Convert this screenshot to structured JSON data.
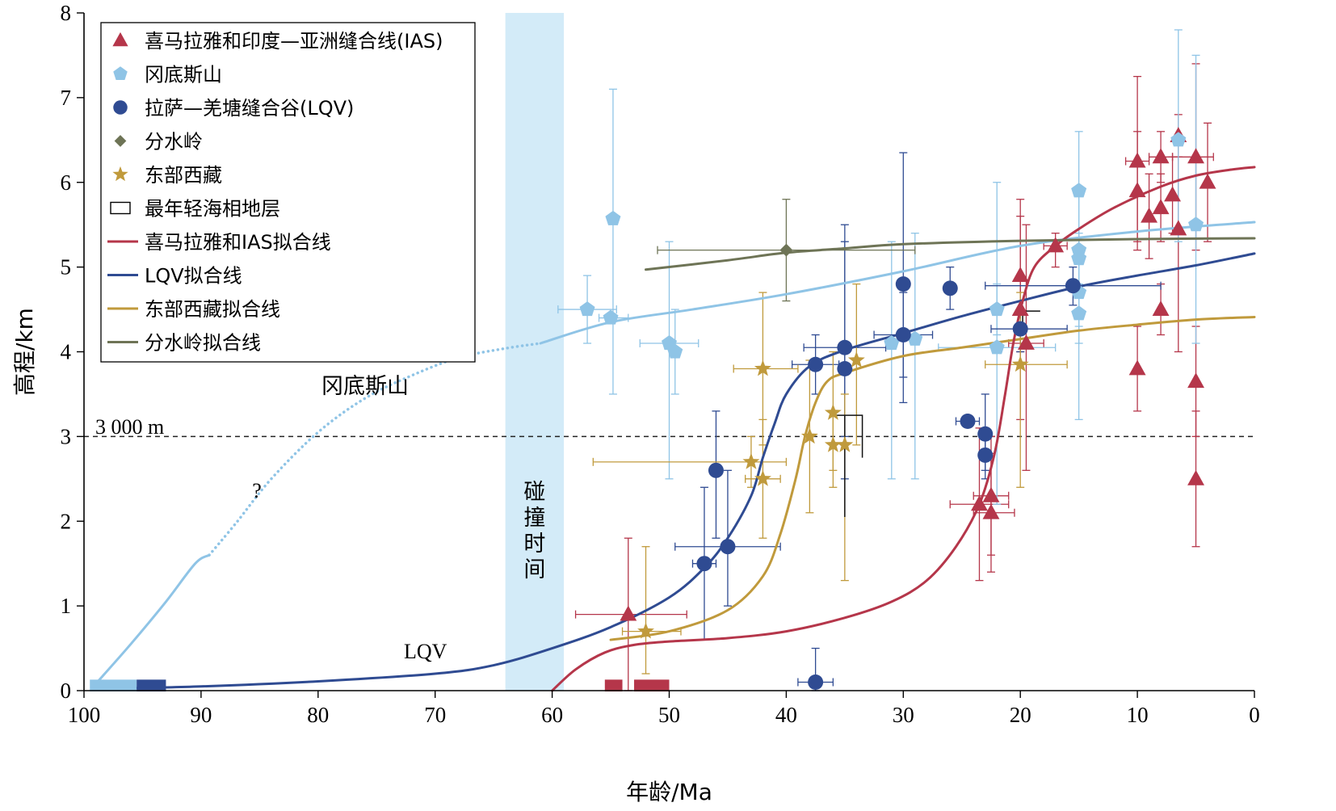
{
  "chart_data": {
    "type": "scatter",
    "xlabel": "年龄/Ma",
    "ylabel": "高程/km",
    "xlim": [
      100,
      0
    ],
    "ylim": [
      0,
      8
    ],
    "x_ticks": [
      100,
      90,
      80,
      70,
      60,
      50,
      40,
      30,
      20,
      10,
      0
    ],
    "y_ticks": [
      0,
      1,
      2,
      3,
      4,
      5,
      6,
      7,
      8
    ],
    "legend_position": "top-left",
    "colors": {
      "ias": "#b5364a",
      "gangdese": "#8fc4e6",
      "lqv": "#2f4b92",
      "divide": "#6e7456",
      "tibet_east": "#c09a3c",
      "collision_band": "#d3ebf8"
    },
    "legend": [
      {
        "key": "ias",
        "label": "喜马拉雅和印度—亚洲缝合线(IAS)",
        "marker": "triangle"
      },
      {
        "key": "gangdese",
        "label": "冈底斯山",
        "marker": "pentagon"
      },
      {
        "key": "lqv",
        "label": "拉萨—羌塘缝合谷(LQV)",
        "marker": "circle"
      },
      {
        "key": "divide",
        "label": "分水岭",
        "marker": "diamond"
      },
      {
        "key": "tibet_east",
        "label": "东部西藏",
        "marker": "star"
      },
      {
        "key": "marine",
        "label": "最年轻海相地层",
        "marker": "rect"
      },
      {
        "key": "ias_fit",
        "label": "喜马拉雅和IAS拟合线",
        "marker": "line",
        "color": "#b5364a"
      },
      {
        "key": "lqv_fit",
        "label": "LQV拟合线",
        "marker": "line",
        "color": "#2f4b92"
      },
      {
        "key": "tibet_east_fit",
        "label": "东部西藏拟合线",
        "marker": "line",
        "color": "#c09a3c"
      },
      {
        "key": "divide_fit",
        "label": "分水岭拟合线",
        "marker": "line",
        "color": "#6e7456"
      }
    ],
    "annotations": {
      "collision": "碰撞时间",
      "gangdese_label": "冈底斯山",
      "lqv_label": "LQV",
      "question": "?",
      "threshold_label": "3 000 m"
    },
    "collision_band": [
      64,
      59
    ],
    "threshold": 3,
    "series": [
      {
        "key": "ias",
        "points": [
          {
            "x": 53.5,
            "y": 0.9,
            "ylo": 0,
            "yhi": 1.8,
            "xlo": 58,
            "xhi": 48.5
          },
          {
            "x": 23.5,
            "y": 2.2,
            "ylo": 1.3,
            "yhi": 3.1,
            "xlo": 26,
            "xhi": 21
          },
          {
            "x": 22.5,
            "y": 2.3,
            "ylo": 1.6,
            "yhi": 3.0,
            "xlo": 24,
            "xhi": 21
          },
          {
            "x": 22.5,
            "y": 2.1,
            "ylo": 1.4,
            "yhi": 2.8,
            "xlo": 24,
            "xhi": 20.5
          },
          {
            "x": 20,
            "y": 4.9,
            "ylo": 4,
            "yhi": 5.8
          },
          {
            "x": 20,
            "y": 4.5,
            "ylo": 3.2,
            "yhi": 5.6
          },
          {
            "x": 19.5,
            "y": 4.1,
            "ylo": 2.6,
            "yhi": 5.5,
            "xlo": 21,
            "xhi": 18
          },
          {
            "x": 17,
            "y": 5.25,
            "ylo": 5.0,
            "yhi": 5.4,
            "xlo": 18,
            "xhi": 16
          },
          {
            "x": 10,
            "y": 6.25,
            "ylo": 5.3,
            "yhi": 7.25,
            "xlo": 11,
            "xhi": 9
          },
          {
            "x": 10,
            "y": 5.9,
            "ylo": 5.2,
            "yhi": 6.6
          },
          {
            "x": 10,
            "y": 3.8,
            "ylo": 3.3,
            "yhi": 4.3
          },
          {
            "x": 9,
            "y": 5.6,
            "ylo": 5.1,
            "yhi": 6.1
          },
          {
            "x": 8,
            "y": 6.3,
            "ylo": 6.0,
            "yhi": 6.6,
            "xlo": 9,
            "xhi": 7
          },
          {
            "x": 8,
            "y": 5.7,
            "ylo": 5.3,
            "yhi": 6.1
          },
          {
            "x": 8,
            "y": 4.5,
            "ylo": 4.2,
            "yhi": 4.8
          },
          {
            "x": 7,
            "y": 5.85,
            "ylo": 5.4,
            "yhi": 6.3
          },
          {
            "x": 6.5,
            "y": 6.55,
            "ylo": 6.3,
            "yhi": 6.8
          },
          {
            "x": 6.5,
            "y": 5.45,
            "ylo": 4.0,
            "yhi": 6.3
          },
          {
            "x": 5,
            "y": 6.3,
            "ylo": 5.2,
            "yhi": 7.4,
            "xlo": 7,
            "xhi": 3.5
          },
          {
            "x": 5,
            "y": 3.65,
            "ylo": 3.0,
            "yhi": 4.3
          },
          {
            "x": 5,
            "y": 2.5,
            "ylo": 1.7,
            "yhi": 3.3
          },
          {
            "x": 4,
            "y": 6.0,
            "ylo": 5.3,
            "yhi": 6.7
          }
        ]
      },
      {
        "key": "gangdese",
        "points": [
          {
            "x": 57,
            "y": 4.5,
            "ylo": 4.1,
            "yhi": 4.9,
            "xlo": 59.5,
            "xhi": 54.5
          },
          {
            "x": 55,
            "y": 4.4,
            "xlo": 56,
            "xhi": 53.5
          },
          {
            "x": 54.8,
            "y": 5.57,
            "ylo": 3.5,
            "yhi": 7.1
          },
          {
            "x": 50,
            "y": 4.1,
            "ylo": 2.5,
            "yhi": 5.3,
            "xlo": 52.5,
            "xhi": 47.5
          },
          {
            "x": 49.5,
            "y": 4.0,
            "ylo": 3.5,
            "yhi": 4.5
          },
          {
            "x": 31,
            "y": 4.1,
            "ylo": 2.5,
            "yhi": 5.3
          },
          {
            "x": 29,
            "y": 4.15,
            "ylo": 2.5,
            "yhi": 5.4
          },
          {
            "x": 22,
            "y": 4.05,
            "ylo": 2.2,
            "yhi": 6.0,
            "xlo": 27,
            "xhi": 17
          },
          {
            "x": 22,
            "y": 4.5,
            "ylo": 4.2,
            "yhi": 4.8
          },
          {
            "x": 15,
            "y": 5.9,
            "ylo": 3.2,
            "yhi": 6.6
          },
          {
            "x": 15,
            "y": 5.2,
            "ylo": 4.5,
            "yhi": 5.9
          },
          {
            "x": 15,
            "y": 5.1,
            "ylo": 4.8,
            "yhi": 5.4
          },
          {
            "x": 15,
            "y": 4.7,
            "ylo": 4.3,
            "yhi": 5.1
          },
          {
            "x": 15,
            "y": 4.45,
            "ylo": 4.1,
            "yhi": 4.8
          },
          {
            "x": 6.5,
            "y": 6.5,
            "ylo": 5.3,
            "yhi": 7.8
          },
          {
            "x": 5,
            "y": 5.5,
            "ylo": 4.1,
            "yhi": 7.5
          }
        ]
      },
      {
        "key": "lqv",
        "points": [
          {
            "x": 47,
            "y": 1.5,
            "ylo": 0.6,
            "yhi": 2.4,
            "xlo": 48,
            "xhi": 46
          },
          {
            "x": 46,
            "y": 2.6,
            "ylo": 1.8,
            "yhi": 3.3
          },
          {
            "x": 45,
            "y": 1.7,
            "ylo": 1.0,
            "yhi": 2.6,
            "xlo": 49.5,
            "xhi": 40.5
          },
          {
            "x": 37.5,
            "y": 3.85,
            "ylo": 3.5,
            "yhi": 4.2,
            "xlo": 39.5,
            "xhi": 35.5
          },
          {
            "x": 37.5,
            "y": 0.1,
            "ylo": 0,
            "yhi": 0.5,
            "xlo": 39,
            "xhi": 36
          },
          {
            "x": 35,
            "y": 4.05,
            "ylo": 2.5,
            "yhi": 5.5,
            "xlo": 38.5,
            "xhi": 31.5
          },
          {
            "x": 35,
            "y": 3.8,
            "ylo": 3.0,
            "yhi": 5.3
          },
          {
            "x": 30,
            "y": 4.8,
            "ylo": 3.4,
            "yhi": 6.35
          },
          {
            "x": 30,
            "y": 4.2,
            "ylo": 3.7,
            "yhi": 4.7,
            "xlo": 32.5,
            "xhi": 27.5
          },
          {
            "x": 26,
            "y": 4.75,
            "ylo": 4.5,
            "yhi": 5.0
          },
          {
            "x": 24.5,
            "y": 3.18,
            "xlo": 25.5,
            "xhi": 23.5
          },
          {
            "x": 23,
            "y": 3.03,
            "ylo": 2.6,
            "yhi": 3.5
          },
          {
            "x": 23,
            "y": 2.78,
            "ylo": 2.5,
            "yhi": 3.1
          },
          {
            "x": 20,
            "y": 4.27,
            "ylo": 4.0,
            "yhi": 4.5,
            "xlo": 22.5,
            "xhi": 16
          },
          {
            "x": 15.5,
            "y": 4.78,
            "ylo": 4.55,
            "yhi": 5.0,
            "xlo": 23,
            "xhi": 8
          }
        ]
      },
      {
        "key": "divide",
        "points": [
          {
            "x": 40,
            "y": 5.2,
            "ylo": 4.6,
            "yhi": 5.8,
            "xlo": 51,
            "xhi": 29
          }
        ]
      },
      {
        "key": "tibet_east",
        "points": [
          {
            "x": 52,
            "y": 0.7,
            "ylo": 0.2,
            "yhi": 1.7,
            "xlo": 54,
            "xhi": 49
          },
          {
            "x": 43,
            "y": 2.7,
            "ylo": 2.4,
            "yhi": 3.0,
            "xlo": 56.5,
            "xhi": 40
          },
          {
            "x": 42,
            "y": 2.5,
            "ylo": 1.8,
            "yhi": 3.2,
            "xlo": 43.5,
            "xhi": 40.5
          },
          {
            "x": 42,
            "y": 3.8,
            "ylo": 2.9,
            "yhi": 4.7,
            "xlo": 44.5,
            "xhi": 39
          },
          {
            "x": 38,
            "y": 3.0,
            "ylo": 2.1,
            "yhi": 3.9
          },
          {
            "x": 36,
            "y": 3.28,
            "ylo": 2.6,
            "yhi": 4.0
          },
          {
            "x": 36,
            "y": 2.9,
            "ylo": 2.4,
            "yhi": 3.3
          },
          {
            "x": 35,
            "y": 2.9,
            "ylo": 1.3,
            "yhi": 3.5
          },
          {
            "x": 34,
            "y": 3.9,
            "ylo": 2.9,
            "yhi": 4.8
          },
          {
            "x": 20,
            "y": 3.85,
            "ylo": 2.4,
            "yhi": 4.7,
            "xlo": 23,
            "xhi": 16
          }
        ]
      }
    ],
    "fits": [
      {
        "key": "gangdese_fit",
        "style": "solid",
        "points": [
          [
            99,
            0.08
          ],
          [
            96,
            0.55
          ],
          [
            93,
            1.05
          ],
          [
            90.5,
            1.5
          ],
          [
            89.3,
            1.6
          ]
        ]
      },
      {
        "key": "gangdese_fit",
        "style": "dotted",
        "points": [
          [
            89.3,
            1.6
          ],
          [
            87,
            1.98
          ],
          [
            84,
            2.5
          ],
          [
            80,
            3.05
          ],
          [
            76,
            3.45
          ],
          [
            72,
            3.72
          ],
          [
            68,
            3.93
          ],
          [
            64,
            4.04
          ],
          [
            61,
            4.1
          ]
        ]
      },
      {
        "key": "gangdese_fit",
        "style": "solid",
        "points": [
          [
            61,
            4.1
          ],
          [
            55,
            4.35
          ],
          [
            48,
            4.5
          ],
          [
            40,
            4.68
          ],
          [
            30,
            4.95
          ],
          [
            20,
            5.25
          ],
          [
            10,
            5.42
          ],
          [
            0,
            5.53
          ]
        ]
      },
      {
        "key": "lqv_fit",
        "style": "solid",
        "points": [
          [
            99,
            0.02
          ],
          [
            90,
            0.05
          ],
          [
            80,
            0.11
          ],
          [
            70,
            0.2
          ],
          [
            65,
            0.3
          ],
          [
            60,
            0.5
          ],
          [
            55,
            0.75
          ],
          [
            50,
            1.1
          ],
          [
            47,
            1.45
          ],
          [
            45,
            1.8
          ],
          [
            43,
            2.3
          ],
          [
            42,
            2.75
          ],
          [
            41,
            3.15
          ],
          [
            40,
            3.5
          ],
          [
            38,
            3.83
          ],
          [
            35,
            4.02
          ],
          [
            30,
            4.22
          ],
          [
            25,
            4.42
          ],
          [
            20,
            4.6
          ],
          [
            15,
            4.77
          ],
          [
            10,
            4.9
          ],
          [
            5,
            5.02
          ],
          [
            0,
            5.16
          ]
        ]
      },
      {
        "key": "tibet_east_fit",
        "style": "solid",
        "points": [
          [
            55,
            0.6
          ],
          [
            50,
            0.7
          ],
          [
            45,
            0.95
          ],
          [
            42,
            1.35
          ],
          [
            40.5,
            1.85
          ],
          [
            39.2,
            2.5
          ],
          [
            38.4,
            3.0
          ],
          [
            37.5,
            3.4
          ],
          [
            36.5,
            3.65
          ],
          [
            35,
            3.75
          ],
          [
            30,
            3.95
          ],
          [
            25,
            4.05
          ],
          [
            20,
            4.15
          ],
          [
            15,
            4.25
          ],
          [
            10,
            4.32
          ],
          [
            5,
            4.38
          ],
          [
            0,
            4.41
          ]
        ]
      },
      {
        "key": "ias_fit",
        "style": "solid",
        "points": [
          [
            60,
            0
          ],
          [
            58,
            0.25
          ],
          [
            55.5,
            0.45
          ],
          [
            53,
            0.54
          ],
          [
            50,
            0.58
          ],
          [
            45,
            0.62
          ],
          [
            40,
            0.7
          ],
          [
            35,
            0.86
          ],
          [
            31,
            1.05
          ],
          [
            28,
            1.3
          ],
          [
            25.5,
            1.7
          ],
          [
            23.5,
            2.2
          ],
          [
            22.2,
            2.8
          ],
          [
            21.3,
            3.5
          ],
          [
            20.6,
            4.1
          ],
          [
            19.8,
            4.6
          ],
          [
            18.8,
            5.0
          ],
          [
            17,
            5.25
          ],
          [
            15,
            5.45
          ],
          [
            12,
            5.7
          ],
          [
            8,
            5.95
          ],
          [
            5,
            6.08
          ],
          [
            2,
            6.15
          ],
          [
            0,
            6.18
          ]
        ]
      },
      {
        "key": "divide_fit",
        "style": "solid",
        "points": [
          [
            52,
            4.97
          ],
          [
            45,
            5.08
          ],
          [
            40,
            5.17
          ],
          [
            35,
            5.22
          ],
          [
            30,
            5.27
          ],
          [
            20,
            5.31
          ],
          [
            10,
            5.33
          ],
          [
            0,
            5.34
          ]
        ]
      }
    ],
    "marine_strata": [
      {
        "key": "gangdese",
        "x_range": [
          99.5,
          95.5
        ]
      },
      {
        "key": "lqv",
        "x_range": [
          95.5,
          93
        ]
      },
      {
        "key": "ias",
        "x_range": [
          55.5,
          54
        ]
      },
      {
        "key": "ias",
        "x_range": [
          53,
          50
        ]
      }
    ],
    "brackets": [
      {
        "x_from": 36,
        "x_to": 33.5,
        "y_top": 3.25,
        "y_bottom": 2.75,
        "x_stem": 35,
        "y_stem_bottom": 2.05
      },
      {
        "x_from": 19.8,
        "x_to": 18.3,
        "y_top": 4.48,
        "y_bottom": 4.48,
        "x_stem": 19.8,
        "y_stem_bottom": 4.3
      }
    ]
  }
}
